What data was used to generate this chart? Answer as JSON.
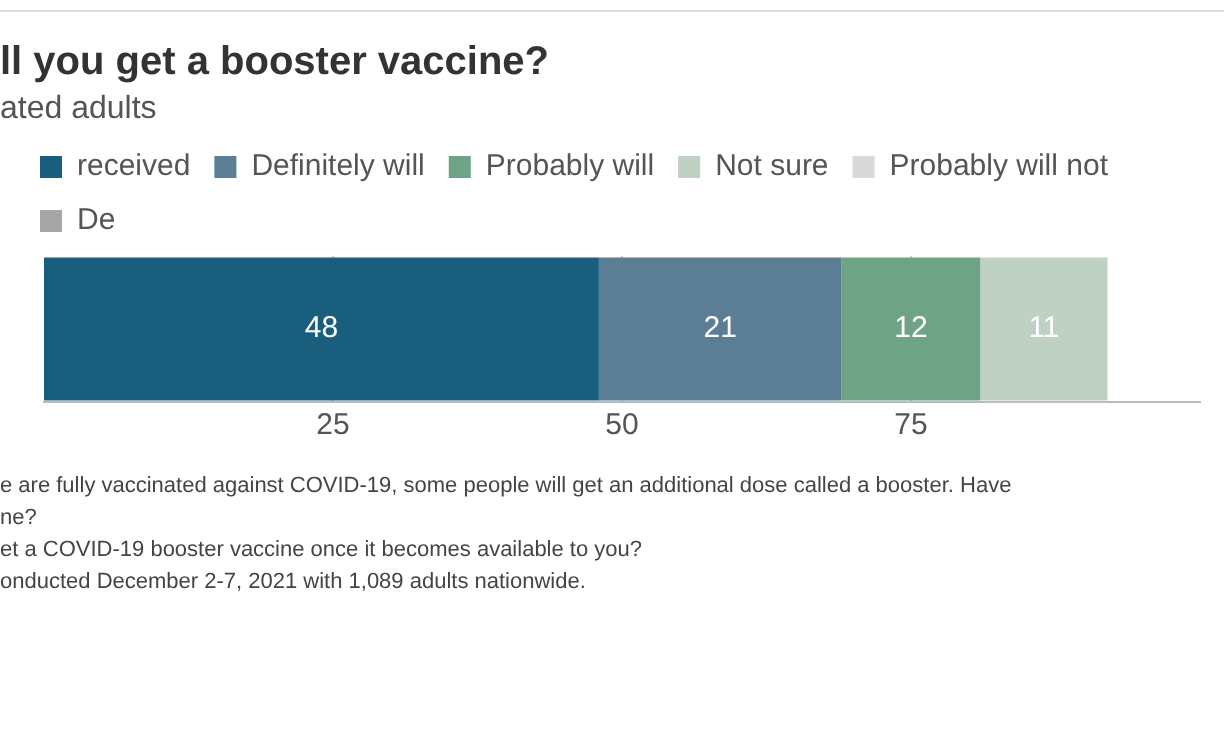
{
  "chart_data": {
    "type": "bar",
    "orientation": "horizontal",
    "stacked": true,
    "title": "ll you get a booster vaccine?",
    "subtitle": "ated adults",
    "categories": [
      null
    ],
    "series": [
      {
        "name": "received",
        "color": "#1a5e7e",
        "values": [
          48
        ]
      },
      {
        "name": "Definitely will",
        "color": "#5b7e95",
        "values": [
          21
        ]
      },
      {
        "name": "Probably will",
        "color": "#6fa386",
        "values": [
          12
        ]
      },
      {
        "name": "Not sure",
        "color": "#bfd1c3",
        "values": [
          11
        ]
      },
      {
        "name": "Probably will not",
        "color": "#d9d9d9",
        "values": [
          null
        ]
      },
      {
        "name": "De",
        "color": "#a6a6a6",
        "values": [
          null
        ]
      }
    ],
    "xlim": [
      0,
      100
    ],
    "xticks": [
      25,
      50,
      75
    ],
    "grid": "x",
    "legend": "top",
    "data_labels": true,
    "annotations": [
      "e are fully vaccinated against COVID-19, some people will get an additional dose called a booster. Have",
      "ne?",
      "et a COVID-19 booster vaccine once it becomes available to you?",
      "onducted December 2-7, 2021 with 1,089 adults nationwide."
    ]
  }
}
